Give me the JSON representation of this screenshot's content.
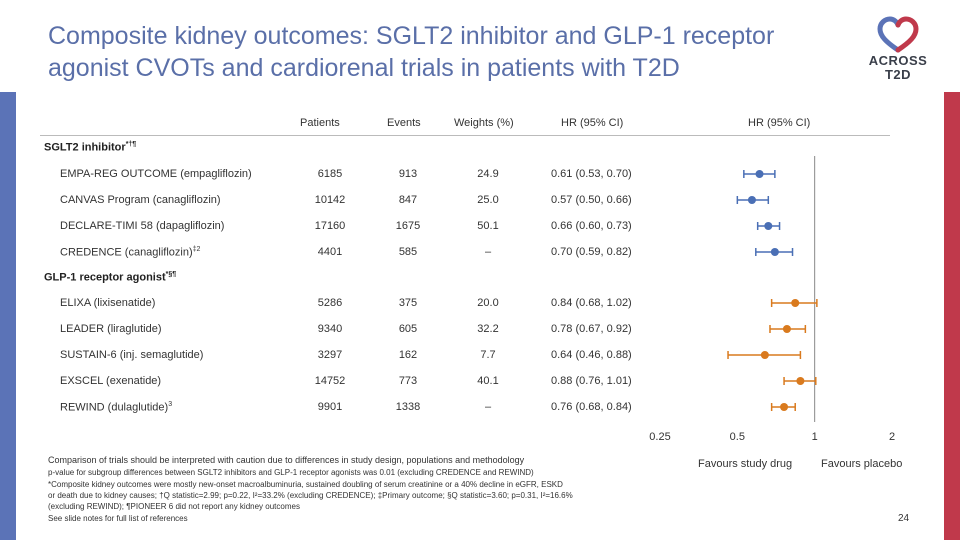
{
  "title": "Composite kidney outcomes: SGLT2 inhibitor and GLP-1 receptor agonist CVOTs and cardiorenal trials in patients with T2D",
  "logo": {
    "line1": "ACROSS",
    "line2": "T2D"
  },
  "columns": {
    "patients": "Patients",
    "events": "Events",
    "weights": "Weights (%)",
    "hr": "HR (95% CI)",
    "hr_plot": "HR (95% CI)"
  },
  "groups": [
    {
      "label": "SGLT2 inhibitor",
      "sup": "*†¶",
      "color": "#4a6fb5"
    },
    {
      "label": "GLP-1 receptor agonist",
      "sup": "*§¶",
      "color": "#d97a1e"
    }
  ],
  "rows": [
    {
      "trial": "EMPA-REG OUTCOME (empagliflozin)",
      "sup": "",
      "patients": "6185",
      "events": "913",
      "weight": "24.9",
      "hr_text": "0.61 (0.53, 0.70)"
    },
    {
      "trial": "CANVAS Program (canagliflozin)",
      "sup": "",
      "patients": "10142",
      "events": "847",
      "weight": "25.0",
      "hr_text": "0.57 (0.50, 0.66)"
    },
    {
      "trial": "DECLARE-TIMI 58 (dapagliflozin)",
      "sup": "",
      "patients": "17160",
      "events": "1675",
      "weight": "50.1",
      "hr_text": "0.66 (0.60, 0.73)"
    },
    {
      "trial": "CREDENCE (canagliflozin)",
      "sup": "‡2",
      "patients": "4401",
      "events": "585",
      "weight": "–",
      "hr_text": "0.70 (0.59, 0.82)"
    },
    {
      "trial": "ELIXA (lixisenatide)",
      "sup": "",
      "patients": "5286",
      "events": "375",
      "weight": "20.0",
      "hr_text": "0.84 (0.68, 1.02)"
    },
    {
      "trial": "LEADER (liraglutide)",
      "sup": "",
      "patients": "9340",
      "events": "605",
      "weight": "32.2",
      "hr_text": "0.78 (0.67, 0.92)"
    },
    {
      "trial": "SUSTAIN-6 (inj. semaglutide)",
      "sup": "",
      "patients": "3297",
      "events": "162",
      "weight": "7.7",
      "hr_text": "0.64 (0.46, 0.88)"
    },
    {
      "trial": "EXSCEL (exenatide)",
      "sup": "",
      "patients": "14752",
      "events": "773",
      "weight": "40.1",
      "hr_text": "0.88 (0.76, 1.01)"
    },
    {
      "trial": "REWIND (dulaglutide)",
      "sup": "3",
      "patients": "9901",
      "events": "1338",
      "weight": "–",
      "hr_text": "0.76 (0.68, 0.84)"
    }
  ],
  "chart_data": {
    "type": "scatter",
    "scale": "log",
    "xlim": [
      0.25,
      2
    ],
    "ticks": [
      {
        "value": 0.25,
        "label": "0,25"
      },
      {
        "value": 0.5,
        "label": "0,5"
      },
      {
        "value": 1,
        "label": "1"
      },
      {
        "value": 2,
        "label": "2"
      }
    ],
    "reference_line": 1,
    "favours_left": "Favours study drug",
    "favours_right": "Favours placebo",
    "series": [
      {
        "name": "SGLT2 inhibitor",
        "color": "#4a6fb5",
        "points": [
          {
            "trial": "EMPA-REG OUTCOME (empagliflozin)",
            "hr": 0.61,
            "lo": 0.53,
            "hi": 0.7
          },
          {
            "trial": "CANVAS Program (canagliflozin)",
            "hr": 0.57,
            "lo": 0.5,
            "hi": 0.66
          },
          {
            "trial": "DECLARE-TIMI 58 (dapagliflozin)",
            "hr": 0.66,
            "lo": 0.6,
            "hi": 0.73
          },
          {
            "trial": "CREDENCE (canagliflozin)",
            "hr": 0.7,
            "lo": 0.59,
            "hi": 0.82
          }
        ]
      },
      {
        "name": "GLP-1 receptor agonist",
        "color": "#d97a1e",
        "points": [
          {
            "trial": "ELIXA (lixisenatide)",
            "hr": 0.84,
            "lo": 0.68,
            "hi": 1.02
          },
          {
            "trial": "LEADER (liraglutide)",
            "hr": 0.78,
            "lo": 0.67,
            "hi": 0.92
          },
          {
            "trial": "SUSTAIN-6 (inj. semaglutide)",
            "hr": 0.64,
            "lo": 0.46,
            "hi": 0.88
          },
          {
            "trial": "EXSCEL (exenatide)",
            "hr": 0.88,
            "lo": 0.76,
            "hi": 1.01
          },
          {
            "trial": "REWIND (dulaglutide)",
            "hr": 0.76,
            "lo": 0.68,
            "hi": 0.84
          }
        ]
      }
    ]
  },
  "footnotes": {
    "caution": "Comparison of trials should be interpreted with caution due to differences in study design, populations and methodology",
    "p_value": "p-value for subgroup differences between SGLT2 inhibitors and GLP-1 receptor agonists was 0.01 (excluding CREDENCE and REWIND)",
    "def": "*Composite kidney outcomes were mostly new-onset macroalbuminuria, sustained doubling of serum creatinine or a 40% decline in eGFR, ESKD",
    "def2": "or death due to kidney causes; †Q statistic=2.99; p=0.22, I²=33.2% (excluding CREDENCE); ‡Primary outcome; §Q statistic=3.60; p=0.31, I²=16.6%",
    "def3": "(excluding REWIND); ¶PIONEER 6 did not report any kidney outcomes",
    "see": "See slide notes for full list of references"
  },
  "page_number": "24"
}
